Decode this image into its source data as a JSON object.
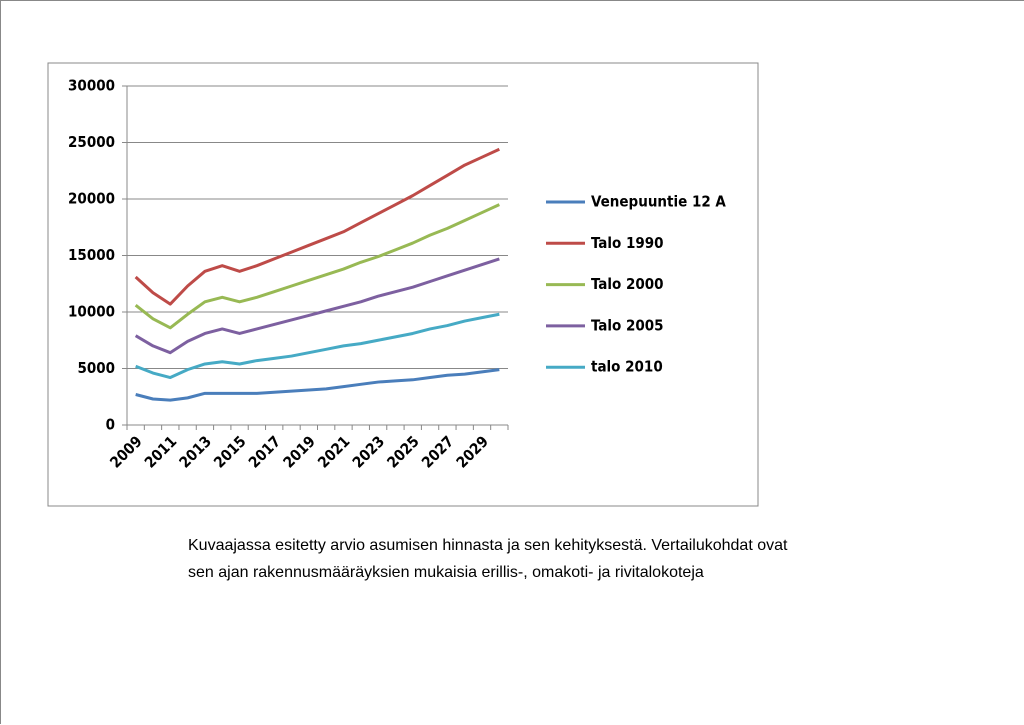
{
  "chart_data": {
    "type": "line",
    "categories": [
      "2009",
      null,
      "2011",
      null,
      "2013",
      null,
      "2015",
      null,
      "2017",
      null,
      "2019",
      null,
      "2021",
      null,
      "2023",
      null,
      "2025",
      null,
      "2027",
      null,
      "2029",
      null
    ],
    "series": [
      {
        "name": "Venepuuntie 12 A",
        "color": "#4a7ebb",
        "values": [
          2700,
          2300,
          2200,
          2400,
          2800,
          2800,
          2800,
          2800,
          2900,
          3000,
          3100,
          3200,
          3400,
          3600,
          3800,
          3900,
          4000,
          4200,
          4400,
          4500,
          4700,
          4900
        ]
      },
      {
        "name": "Talo 1990",
        "color": "#be4b48",
        "values": [
          13100,
          11700,
          10700,
          12300,
          13600,
          14100,
          13600,
          14100,
          14700,
          15300,
          15900,
          16500,
          17100,
          17900,
          18700,
          19500,
          20300,
          21200,
          22100,
          23000,
          23700,
          24400
        ]
      },
      {
        "name": "Talo 2000",
        "color": "#98b954",
        "values": [
          10600,
          9400,
          8600,
          9800,
          10900,
          11300,
          10900,
          11300,
          11800,
          12300,
          12800,
          13300,
          13800,
          14400,
          14900,
          15500,
          16100,
          16800,
          17400,
          18100,
          18800,
          19500
        ]
      },
      {
        "name": "Talo 2005",
        "color": "#7d60a0",
        "values": [
          7900,
          7000,
          6400,
          7400,
          8100,
          8500,
          8100,
          8500,
          8900,
          9300,
          9700,
          10100,
          10500,
          10900,
          11400,
          11800,
          12200,
          12700,
          13200,
          13700,
          14200,
          14700
        ]
      },
      {
        "name": "talo 2010",
        "color": "#46aac5",
        "values": [
          5200,
          4600,
          4200,
          4900,
          5400,
          5600,
          5400,
          5700,
          5900,
          6100,
          6400,
          6700,
          7000,
          7200,
          7500,
          7800,
          8100,
          8500,
          8800,
          9200,
          9500,
          9800
        ]
      }
    ],
    "ylim": [
      0,
      30000
    ],
    "yticks": [
      0,
      5000,
      10000,
      15000,
      20000,
      25000,
      30000
    ],
    "grid": true
  },
  "caption": [
    "Kuvaajassa esitetty arvio asumisen hinnasta ja sen kehityksestä. Vertailukohdat ovat",
    "sen ajan rakennusmääräyksien mukaisia erillis-, omakoti- ja rivitalokoteja"
  ]
}
